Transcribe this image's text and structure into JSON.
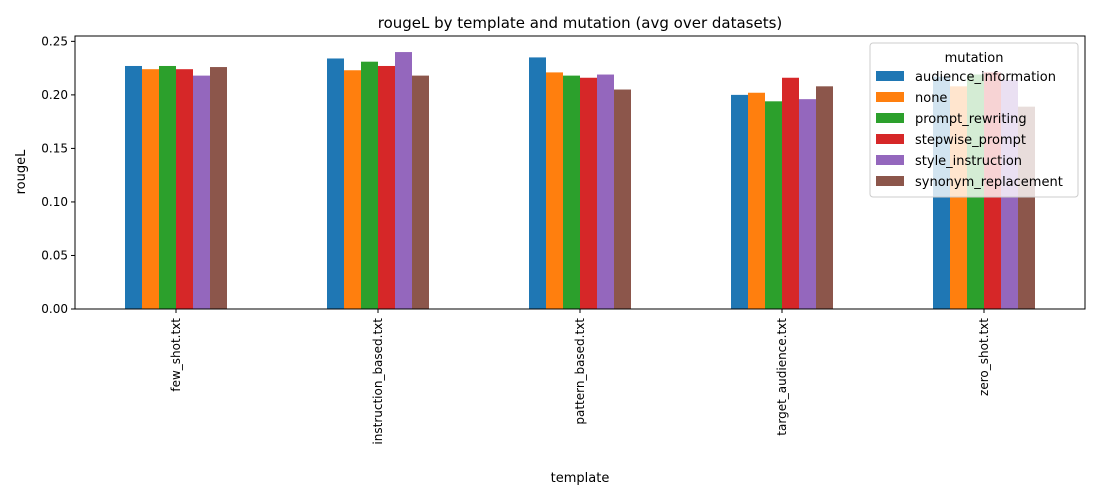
{
  "chart_data": {
    "type": "bar",
    "title": "rougeL by template and mutation (avg over datasets)",
    "xlabel": "template",
    "ylabel": "rougeL",
    "categories": [
      "few_shot.txt",
      "instruction_based.txt",
      "pattern_based.txt",
      "target_audience.txt",
      "zero_shot.txt"
    ],
    "ylim": [
      0,
      0.255
    ],
    "yticks": [
      0.0,
      0.05,
      0.1,
      0.15,
      0.2,
      0.25
    ],
    "ytick_labels": [
      "0.00",
      "0.05",
      "0.10",
      "0.15",
      "0.20",
      "0.25"
    ],
    "grid": false,
    "legend": {
      "title": "mutation",
      "placement": "top-right"
    },
    "series": [
      {
        "name": "audience_information",
        "color": "#1f77b4",
        "values": [
          0.227,
          0.234,
          0.235,
          0.2,
          0.217
        ]
      },
      {
        "name": "none",
        "color": "#ff7f0e",
        "values": [
          0.224,
          0.223,
          0.221,
          0.202,
          0.208
        ]
      },
      {
        "name": "prompt_rewriting",
        "color": "#2ca02c",
        "values": [
          0.227,
          0.231,
          0.218,
          0.194,
          0.219
        ]
      },
      {
        "name": "stepwise_prompt",
        "color": "#d62728",
        "values": [
          0.224,
          0.227,
          0.216,
          0.216,
          0.221
        ]
      },
      {
        "name": "style_instruction",
        "color": "#9467bd",
        "values": [
          0.218,
          0.24,
          0.219,
          0.196,
          0.214
        ]
      },
      {
        "name": "synonym_replacement",
        "color": "#8c564b",
        "values": [
          0.226,
          0.218,
          0.205,
          0.208,
          0.189
        ]
      }
    ]
  }
}
